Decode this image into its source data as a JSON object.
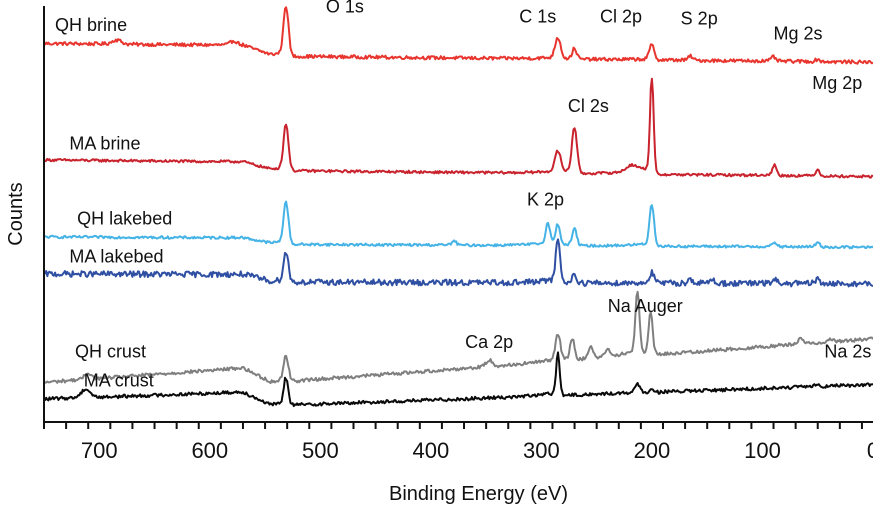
{
  "chart_data": {
    "type": "line",
    "xlabel": "Binding Energy (eV)",
    "ylabel": "Counts",
    "xlim": [
      750,
      0
    ],
    "x_ticks": [
      700,
      600,
      500,
      400,
      300,
      200,
      100,
      0
    ],
    "x_tick_labels": [
      "700",
      "600",
      "500",
      "400",
      "300",
      "200",
      "100",
      "0"
    ],
    "grid": false,
    "series": [
      {
        "name": "QH brine",
        "color": "#e8352e",
        "baseline": 0.885,
        "slope": 0.02,
        "bg_until": 545,
        "bg_height": 0.025,
        "noise": 0.004,
        "peaks": [
          [
            531,
            0.12,
            2.2
          ],
          [
            684,
            0.01,
            4
          ],
          [
            578,
            0.01,
            3
          ],
          [
            285,
            0.05,
            2.5
          ],
          [
            270,
            0.025,
            2
          ],
          [
            200,
            0.035,
            2.2
          ],
          [
            165,
            0.01,
            2
          ],
          [
            90,
            0.01,
            2
          ],
          [
            50,
            0.005,
            2
          ]
        ]
      },
      {
        "name": "MA brine",
        "color": "#c9232e",
        "baseline": 0.61,
        "slope": 0.02,
        "bg_until": 545,
        "bg_height": 0.02,
        "noise": 0.003,
        "peaks": [
          [
            531,
            0.11,
            2.2
          ],
          [
            285,
            0.05,
            2.5
          ],
          [
            270,
            0.11,
            2.2
          ],
          [
            200,
            0.23,
            1.6
          ],
          [
            218,
            0.015,
            5
          ],
          [
            89,
            0.025,
            1.8
          ],
          [
            50,
            0.015,
            1.8
          ]
        ]
      },
      {
        "name": "QH lakebed",
        "color": "#45b3e6",
        "baseline": 0.43,
        "slope": 0.01,
        "bg_until": 545,
        "bg_height": 0.015,
        "noise": 0.003,
        "peaks": [
          [
            531,
            0.1,
            2.2
          ],
          [
            379,
            0.01,
            2
          ],
          [
            294,
            0.05,
            2
          ],
          [
            285,
            0.05,
            2
          ],
          [
            270,
            0.04,
            2
          ],
          [
            200,
            0.1,
            2
          ],
          [
            89,
            0.01,
            2
          ],
          [
            50,
            0.01,
            2
          ]
        ]
      },
      {
        "name": "MA lakebed",
        "color": "#2f4fa3",
        "baseline": 0.338,
        "slope": 0.006,
        "bg_until": 545,
        "bg_height": 0.018,
        "noise": 0.007,
        "peaks": [
          [
            531,
            0.07,
            2.2
          ],
          [
            285,
            0.11,
            1.8
          ],
          [
            270,
            0.02,
            2
          ],
          [
            200,
            0.025,
            2
          ],
          [
            165,
            0.01,
            2
          ],
          [
            145,
            0.01,
            2
          ],
          [
            89,
            0.01,
            2
          ],
          [
            50,
            0.01,
            2
          ]
        ]
      },
      {
        "name": "QH crust",
        "color": "#7f7f80",
        "baseline": 0.055,
        "slope": -0.145,
        "bg_until": 545,
        "bg_height": 0.04,
        "noise": 0.004,
        "peaks": [
          [
            531,
            0.06,
            2.2
          ],
          [
            710,
            0.015,
            3
          ],
          [
            347,
            0.015,
            3
          ],
          [
            285,
            0.065,
            2.2
          ],
          [
            272,
            0.05,
            2
          ],
          [
            255,
            0.03,
            2
          ],
          [
            240,
            0.015,
            3
          ],
          [
            213,
            0.15,
            1.8
          ],
          [
            201,
            0.1,
            1.8
          ],
          [
            65,
            0.015,
            2
          ],
          [
            38,
            0.008,
            2
          ]
        ]
      },
      {
        "name": "MA crust",
        "color": "#0a0a0a",
        "baseline": 0.02,
        "slope": -0.07,
        "bg_until": 545,
        "bg_height": 0.035,
        "noise": 0.004,
        "peaks": [
          [
            531,
            0.065,
            2
          ],
          [
            712,
            0.02,
            4
          ],
          [
            285,
            0.1,
            1.6
          ],
          [
            213,
            0.02,
            2
          ],
          [
            200,
            0.008,
            2
          ],
          [
            50,
            0.006,
            2
          ]
        ]
      }
    ],
    "annotations": [
      {
        "text": "O 1s",
        "x": 495,
        "y": 0.985
      },
      {
        "text": "C 1s",
        "x": 320,
        "y": 0.96
      },
      {
        "text": "Cl 2p",
        "x": 247,
        "y": 0.96
      },
      {
        "text": "S 2p",
        "x": 174,
        "y": 0.955
      },
      {
        "text": "Mg 2s",
        "x": 90,
        "y": 0.92
      },
      {
        "text": "Mg 2p",
        "x": 55,
        "y": 0.8
      },
      {
        "text": "Cl 2s",
        "x": 276,
        "y": 0.745
      },
      {
        "text": "K 2p",
        "x": 313,
        "y": 0.52
      },
      {
        "text": "Na Auger",
        "x": 240,
        "y": 0.265
      },
      {
        "text": "Ca 2p",
        "x": 369,
        "y": 0.178
      },
      {
        "text": "Na 2s",
        "x": 44,
        "y": 0.155
      }
    ]
  }
}
